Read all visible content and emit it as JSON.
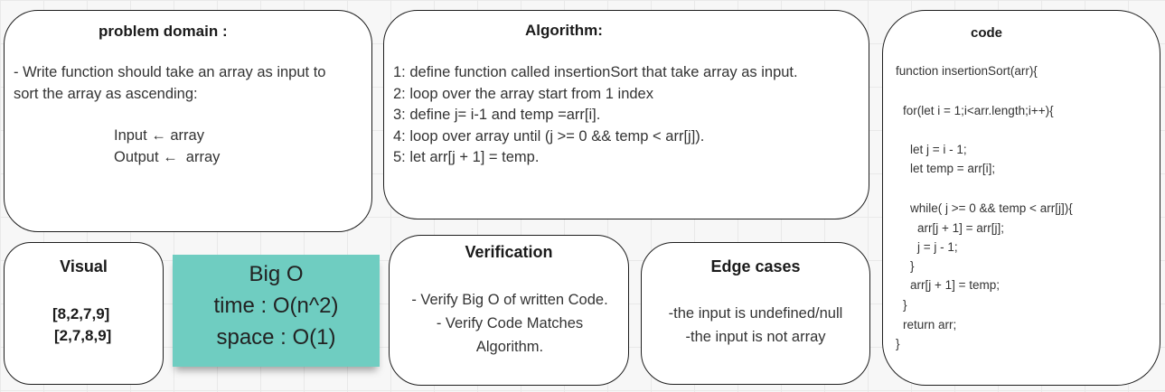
{
  "problem_domain": {
    "title": "problem domain :",
    "lines": [
      "- Write function should take an array as input to",
      "sort the array as ascending:"
    ],
    "input_line": "Input ← array",
    "output_line": "Output ←  array"
  },
  "algorithm": {
    "title": "Algorithm:",
    "steps": [
      "1: define function called insertionSort that take array as input.",
      "2: loop over the array start from 1 index",
      "3: define j= i-1 and temp =arr[i].",
      "4: loop over array until (j >= 0 && temp < arr[j]).",
      "5: let arr[j + 1] = temp."
    ]
  },
  "code": {
    "title": "code",
    "lines": [
      "function insertionSort(arr){",
      "for(let i = 1;i<arr.length;i++){",
      "let j = i - 1;",
      "let temp = arr[i];",
      "while( j >= 0 && temp < arr[j]){",
      "arr[j + 1] = arr[j];",
      "j = j - 1;",
      "}",
      "arr[j + 1] = temp;",
      "}",
      "return arr;",
      "}"
    ]
  },
  "visual": {
    "title": "Visual",
    "before": "[8,2,7,9]",
    "after": "[2,7,8,9]"
  },
  "big_o": {
    "title": "Big O",
    "time": "time : O(n^2)",
    "space": "space : O(1)",
    "color": "#6fcdc1"
  },
  "verification": {
    "title": "Verification",
    "text": "- Verify Big O of written Code.\n- Verify Code Matches Algorithm."
  },
  "edge_cases": {
    "title": "Edge cases",
    "text": "-the input is undefined/null\n-the input is not array"
  }
}
